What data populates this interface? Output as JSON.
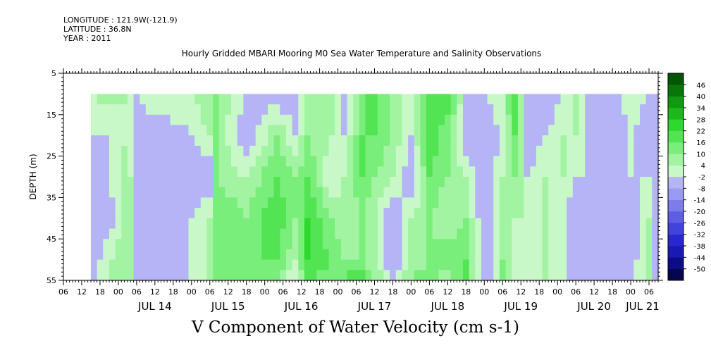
{
  "header": {
    "longitude": "LONGITUDE : 121.9W(-121.9)",
    "latitude": "LATITUDE : 36.8N",
    "year": "YEAR : 2011",
    "title": "Hourly Gridded MBARI Mooring M0 Sea Water Temperature and Salinity Observations"
  },
  "chart_data": {
    "type": "heatmap",
    "title": "Hourly Gridded MBARI Mooring M0 Sea Water Temperature and Salinity Observations",
    "xlabel": "V Component of Water Velocity (cm s-1)",
    "ylabel": "DEPTH (m)",
    "x_unit": "hours",
    "xlim": [
      "2011-07-13 06:00",
      "2011-07-21 09:00"
    ],
    "ylim": [
      5,
      55
    ],
    "y_inverted": true,
    "y_ticks": [
      5,
      15,
      25,
      35,
      45,
      55
    ],
    "x_hour_ticks": [
      "06",
      "12",
      "18",
      "00",
      "06",
      "12",
      "18",
      "00",
      "06",
      "12",
      "18",
      "00",
      "06",
      "12",
      "18",
      "00",
      "06",
      "12",
      "18",
      "00",
      "06",
      "12",
      "18",
      "00",
      "06",
      "12",
      "18",
      "00",
      "06",
      "12",
      "18",
      "00",
      "06"
    ],
    "x_day_labels": [
      "JUL 14",
      "JUL 15",
      "JUL 16",
      "JUL 17",
      "JUL 18",
      "JUL 19",
      "JUL 20",
      "JUL 21"
    ],
    "data_depth_range": [
      10,
      55
    ],
    "data_time_range": [
      "2011-07-13 15:00",
      "2011-07-21 09:00"
    ],
    "colorbar": {
      "levels": [
        -50,
        -44,
        -38,
        -32,
        -26,
        -20,
        -14,
        -8,
        -2,
        4,
        10,
        16,
        22,
        28,
        34,
        40,
        46
      ],
      "colors": [
        "#060650",
        "#0c0c86",
        "#1a1ab2",
        "#2828ce",
        "#4242dc",
        "#5e5ee4",
        "#7c7cec",
        "#9a9af2",
        "#b4b4f6",
        "#c8f8c8",
        "#a2f4a2",
        "#7aee7a",
        "#52e452",
        "#2fd82f",
        "#1cb81c",
        "#0f9a0f",
        "#077807",
        "#045604"
      ]
    },
    "depths": [
      10,
      20,
      30,
      40,
      50,
      55
    ],
    "v_component_profiles": [
      {
        "time": "07-13 15:00",
        "values": [
          4,
          -2,
          -8,
          -8,
          -8,
          -8
        ]
      },
      {
        "time": "07-13 21:00",
        "values": [
          6,
          -2,
          -2,
          -8,
          4,
          4
        ]
      },
      {
        "time": "07-14 03:00",
        "values": [
          4,
          4,
          10,
          10,
          10,
          10
        ]
      },
      {
        "time": "07-14 06:00",
        "values": [
          -2,
          -8,
          -8,
          -8,
          -8,
          -8
        ]
      },
      {
        "time": "07-14 12:00",
        "values": [
          4,
          -8,
          -8,
          -8,
          -8,
          -8
        ]
      },
      {
        "time": "07-15 00:00",
        "values": [
          4,
          -2,
          -8,
          -2,
          -2,
          -2
        ]
      },
      {
        "time": "07-15 06:00",
        "values": [
          10,
          4,
          -8,
          4,
          4,
          4
        ]
      },
      {
        "time": "07-15 08:00",
        "values": [
          10,
          10,
          10,
          16,
          10,
          16
        ]
      },
      {
        "time": "07-15 18:00",
        "values": [
          -2,
          -8,
          4,
          10,
          16,
          10
        ]
      },
      {
        "time": "07-16 04:00",
        "values": [
          -8,
          10,
          16,
          22,
          16,
          10
        ]
      },
      {
        "time": "07-16 10:00",
        "values": [
          -8,
          -2,
          10,
          10,
          4,
          -2
        ]
      },
      {
        "time": "07-16 14:00",
        "values": [
          4,
          10,
          16,
          22,
          22,
          16
        ]
      },
      {
        "time": "07-16 22:00",
        "values": [
          10,
          4,
          -2,
          10,
          16,
          10
        ]
      },
      {
        "time": "07-17 02:00",
        "values": [
          -8,
          -2,
          4,
          4,
          10,
          16
        ]
      },
      {
        "time": "07-17 08:00",
        "values": [
          10,
          16,
          16,
          10,
          10,
          22
        ]
      },
      {
        "time": "07-17 12:00",
        "values": [
          22,
          16,
          10,
          4,
          4,
          10
        ]
      },
      {
        "time": "07-17 18:00",
        "values": [
          4,
          10,
          4,
          -8,
          -8,
          -2
        ]
      },
      {
        "time": "07-18 00:00",
        "values": [
          4,
          -2,
          -8,
          4,
          4,
          10
        ]
      },
      {
        "time": "07-18 06:00",
        "values": [
          16,
          22,
          16,
          10,
          10,
          16
        ]
      },
      {
        "time": "07-18 12:00",
        "values": [
          22,
          10,
          10,
          4,
          16,
          4
        ]
      },
      {
        "time": "07-18 18:00",
        "values": [
          -2,
          -8,
          4,
          10,
          16,
          16
        ]
      },
      {
        "time": "07-19 00:00",
        "values": [
          -2,
          -8,
          -8,
          -8,
          -8,
          -8
        ]
      },
      {
        "time": "07-19 06:00",
        "values": [
          4,
          -2,
          4,
          4,
          10,
          10
        ]
      },
      {
        "time": "07-19 10:00",
        "values": [
          22,
          16,
          10,
          4,
          -2,
          4
        ]
      },
      {
        "time": "07-19 14:00",
        "values": [
          -8,
          -8,
          -2,
          4,
          -2,
          -2
        ]
      },
      {
        "time": "07-19 20:00",
        "values": [
          -8,
          -2,
          4,
          4,
          4,
          4
        ]
      },
      {
        "time": "07-20 02:00",
        "values": [
          -2,
          4,
          4,
          -2,
          -2,
          -2
        ]
      },
      {
        "time": "07-20 06:00",
        "values": [
          4,
          4,
          -2,
          -8,
          -8,
          -8
        ]
      },
      {
        "time": "07-20 12:00",
        "values": [
          -8,
          -8,
          -2,
          -8,
          -8,
          -8
        ]
      },
      {
        "time": "07-20 18:00",
        "values": [
          -8,
          -8,
          -2,
          -8,
          -8,
          -2
        ]
      },
      {
        "time": "07-21 00:00",
        "values": [
          4,
          -2,
          -2,
          -8,
          -8,
          -2
        ]
      },
      {
        "time": "07-21 06:00",
        "values": [
          -2,
          -8,
          -2,
          4,
          10,
          4
        ]
      },
      {
        "time": "07-21 09:00",
        "values": [
          -8,
          -8,
          -8,
          -8,
          -8,
          -8
        ]
      }
    ]
  }
}
